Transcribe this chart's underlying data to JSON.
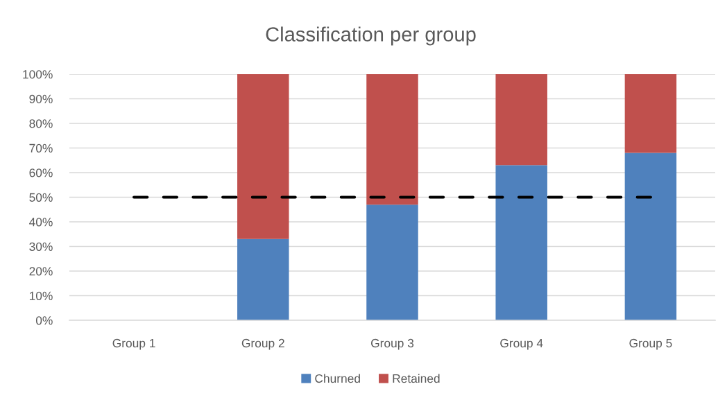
{
  "chart_data": {
    "type": "bar",
    "title": "Classification per group",
    "categories": [
      "Group 1",
      "Group 2",
      "Group 3",
      "Group 4",
      "Group 5"
    ],
    "stacked": true,
    "series": [
      {
        "name": "Churned",
        "color": "#4f81bd",
        "values": [
          null,
          33,
          47,
          63,
          68
        ]
      },
      {
        "name": "Retained",
        "color": "#c0504d",
        "values": [
          null,
          67,
          53,
          37,
          32
        ]
      },
      {
        "type": "line",
        "color": "#000000",
        "line_style": "dashed",
        "values": [
          50,
          50,
          50,
          50,
          50
        ]
      }
    ],
    "ylim": [
      0,
      100
    ],
    "yticks": [
      {
        "value": 0,
        "label": "0%"
      },
      {
        "value": 10,
        "label": "10%"
      },
      {
        "value": 20,
        "label": "20%"
      },
      {
        "value": 30,
        "label": "30%"
      },
      {
        "value": 40,
        "label": "40%"
      },
      {
        "value": 50,
        "label": "50%"
      },
      {
        "value": 60,
        "label": "60%"
      },
      {
        "value": 70,
        "label": "70%"
      },
      {
        "value": 80,
        "label": "80%"
      },
      {
        "value": 90,
        "label": "90%"
      },
      {
        "value": 100,
        "label": "100%"
      }
    ],
    "grid": "y",
    "legend": "bottom"
  }
}
